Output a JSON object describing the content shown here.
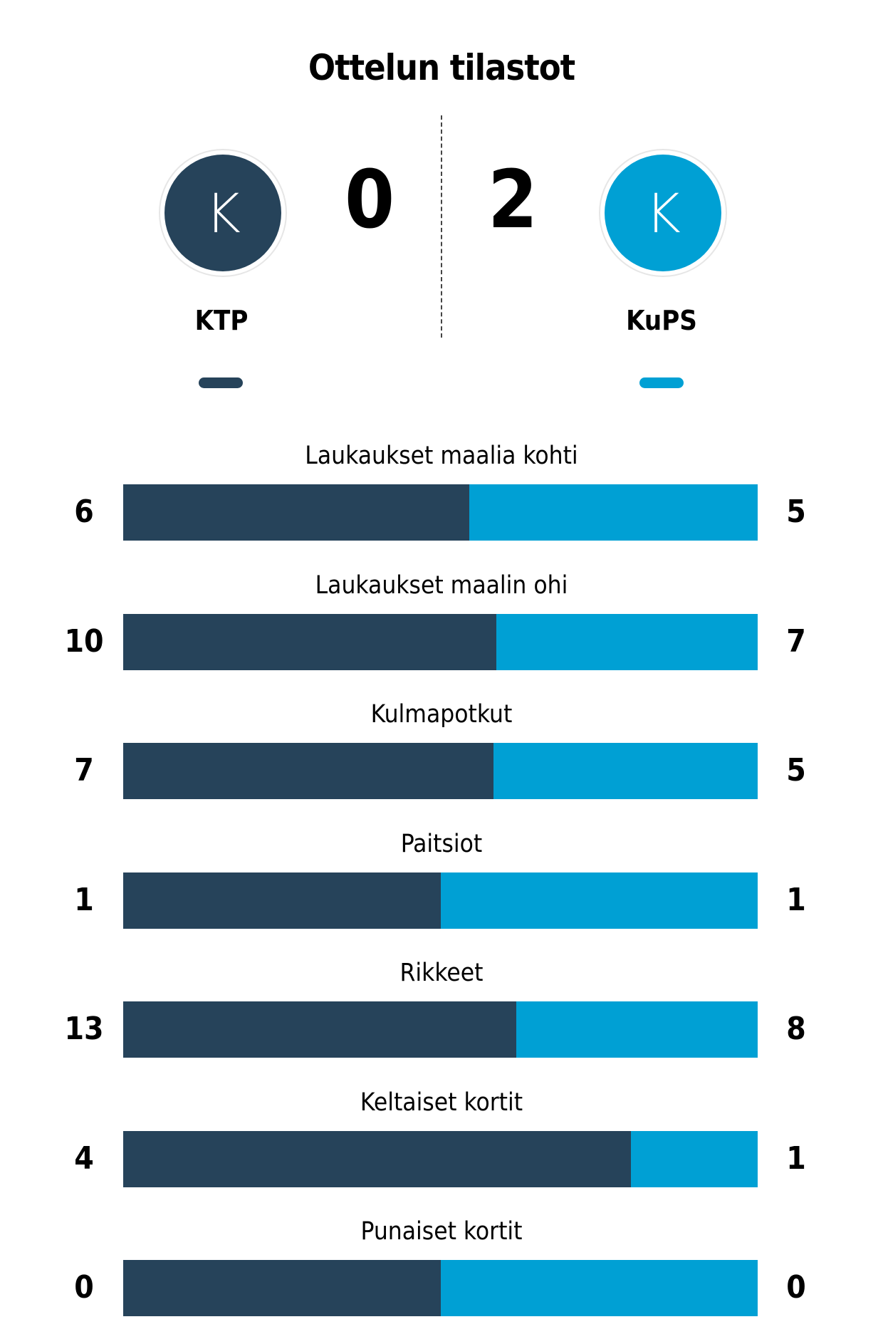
{
  "colors": {
    "home": "#26435A",
    "away": "#00A0D4"
  },
  "chart_data": {
    "type": "bar",
    "title": "Ottelun tilastot",
    "orientation": "horizontal-stacked-100",
    "categories": [
      "Laukaukset maalia kohti",
      "Laukaukset maalin ohi",
      "Kulmapotkut",
      "Paitsiot",
      "Rikkeet",
      "Keltaiset kortit",
      "Punaiset kortit"
    ],
    "series": [
      {
        "name": "KTP",
        "values": [
          6,
          10,
          7,
          1,
          13,
          4,
          0
        ]
      },
      {
        "name": "KuPS",
        "values": [
          5,
          7,
          5,
          1,
          8,
          1,
          0
        ]
      }
    ]
  },
  "match": {
    "home": {
      "name": "KTP",
      "initial": "K",
      "score": "0"
    },
    "away": {
      "name": "KuPS",
      "initial": "K",
      "score": "2"
    }
  }
}
